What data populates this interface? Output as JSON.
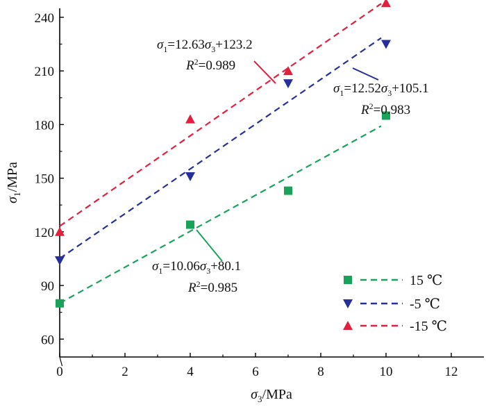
{
  "chart_data": {
    "type": "scatter",
    "title": "",
    "xlabel": "σ3/MPa",
    "ylabel": "σ1/MPa",
    "xlim": [
      0,
      13
    ],
    "ylim": [
      50,
      245
    ],
    "xticks": [
      0,
      2,
      4,
      6,
      8,
      10,
      12
    ],
    "yticks": [
      60,
      90,
      120,
      150,
      180,
      210,
      240
    ],
    "xlabel_parts": {
      "sym": "σ",
      "sub": "3",
      "rest": "/MPa"
    },
    "ylabel_parts": {
      "sym": "σ",
      "sub": "1",
      "rest": "/MPa"
    },
    "grid": false,
    "legend_position": "bottom-right",
    "series": [
      {
        "name": "15 ℃",
        "color": "#19a35a",
        "marker": "square",
        "x": [
          0,
          4,
          7,
          10
        ],
        "y": [
          80,
          124,
          143,
          185
        ],
        "fit": {
          "slope": 10.06,
          "intercept": 80.1,
          "r2": "0.985",
          "eq_parts": [
            "σ",
            "1",
            "=10.06",
            "σ",
            "3",
            "+80.1"
          ],
          "r2_parts": [
            "R",
            "2",
            "=0.985"
          ]
        }
      },
      {
        "name": "-5 ℃",
        "color": "#26309a",
        "marker": "triangle-down",
        "x": [
          0,
          4,
          7,
          10
        ],
        "y": [
          104,
          151,
          203,
          225
        ],
        "fit": {
          "slope": 12.52,
          "intercept": 105.1,
          "r2": "0.983",
          "eq_parts": [
            "σ",
            "1",
            "=12.52",
            "σ",
            "3",
            "+105.1"
          ],
          "r2_parts": [
            "R",
            "2",
            "=0.983"
          ]
        }
      },
      {
        "name": "-15 ℃",
        "color": "#e0203c",
        "marker": "triangle-up",
        "x": [
          0,
          4,
          7,
          10
        ],
        "y": [
          120,
          183,
          210,
          248
        ],
        "fit": {
          "slope": 12.63,
          "intercept": 123.2,
          "r2": "0.989",
          "eq_parts": [
            "σ",
            "1",
            "=12.63",
            "σ",
            "3",
            "+123.2"
          ],
          "r2_parts": [
            "R",
            "2",
            "=0.989"
          ]
        }
      }
    ]
  }
}
